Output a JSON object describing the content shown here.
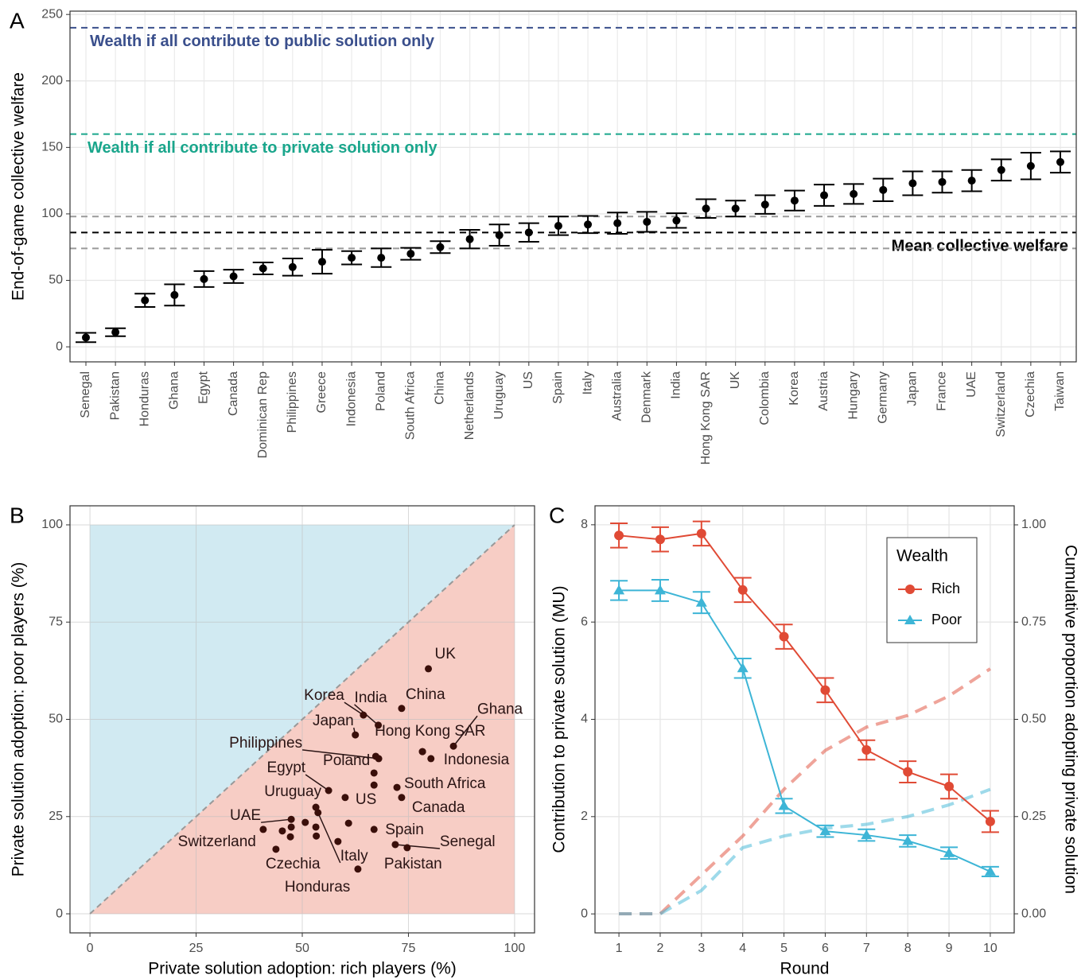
{
  "chart_data": [
    {
      "type": "dot-errorbar",
      "panel_label": "A",
      "ylabel": "End-of-game collective welfare",
      "categories": [
        "Senegal",
        "Pakistan",
        "Honduras",
        "Ghana",
        "Egypt",
        "Canada",
        "Dominican Rep",
        "Philippines",
        "Greece",
        "Indonesia",
        "Poland",
        "South Africa",
        "China",
        "Netherlands",
        "Uruguay",
        "US",
        "Spain",
        "Italy",
        "Australia",
        "Denmark",
        "India",
        "Hong Kong SAR",
        "UK",
        "Colombia",
        "Korea",
        "Austria",
        "Hungary",
        "Germany",
        "Japan",
        "France",
        "UAE",
        "Switzerland",
        "Czechia",
        "Taiwan"
      ],
      "values": [
        7,
        11,
        35,
        39,
        51,
        53,
        59,
        60,
        64,
        67,
        67,
        70,
        75,
        81,
        84,
        86,
        91,
        92,
        93,
        94,
        95,
        104,
        104,
        107,
        110,
        114,
        115,
        118,
        123,
        124,
        125,
        133,
        136,
        139
      ],
      "errors": [
        3.5,
        3,
        5,
        8,
        6,
        5,
        4.5,
        6.5,
        9,
        5,
        7,
        4.5,
        4.5,
        7,
        8,
        7,
        7,
        6.5,
        8,
        7.5,
        5.5,
        7,
        6,
        7,
        7.5,
        8,
        7.5,
        8.5,
        9,
        8,
        8,
        8,
        10,
        8
      ],
      "color": "#000000",
      "ylim": [
        -11.3,
        252.5
      ],
      "yticks": [
        0,
        50,
        100,
        150,
        200,
        250
      ],
      "grid": true,
      "reference_lines": [
        {
          "value": 240,
          "label": "Wealth if all contribute to public solution only",
          "color": "#3a4f8c"
        },
        {
          "value": 160,
          "label": "Wealth if all contribute to private solution only",
          "color": "#1aa68c"
        },
        {
          "value": 98,
          "color": "#9a9a9a"
        },
        {
          "value": 86,
          "label": "Mean collective welfare",
          "color": "#000000"
        },
        {
          "value": 74,
          "color": "#9a9a9a"
        }
      ]
    },
    {
      "type": "scatter",
      "panel_label": "B",
      "xlabel": "Private solution adoption: rich players (%)",
      "ylabel": "Private solution adoption: poor players (%)",
      "x": [
        79.7,
        73.4,
        64.4,
        67.9,
        62.5,
        78.3,
        85.6,
        80.3,
        68.0,
        66.9,
        56.2,
        60.1,
        72.3,
        73.4,
        53.2,
        66.9,
        71.9,
        74.7,
        47.4,
        40.8,
        43.8,
        53.7,
        63.1,
        58.4,
        50.7,
        60.9,
        47.4,
        45.3,
        47.2,
        53.2,
        53.3,
        66.9,
        78.3,
        67.3
      ],
      "y": [
        63.0,
        52.8,
        51.1,
        48.5,
        46.0,
        41.7,
        43.1,
        39.9,
        39.9,
        36.2,
        31.7,
        29.9,
        32.5,
        29.9,
        27.4,
        21.7,
        17.8,
        17.0,
        24.3,
        21.7,
        16.6,
        26.0,
        11.5,
        18.6,
        23.5,
        23.3,
        22.3,
        21.3,
        19.8,
        22.3,
        20.0,
        33.1,
        41.7,
        40.5
      ],
      "labels": [
        "UK",
        "China",
        "Korea",
        "India",
        "Japan",
        "Hong Kong SAR",
        "Ghana",
        "Indonesia",
        "Philippines",
        "Poland",
        "Egypt",
        "US",
        "South Africa",
        "Canada",
        "Uruguay",
        "Spain",
        "Senegal",
        "Pakistan",
        "UAE",
        "Switzerland",
        "Czechia",
        "Italy",
        "Honduras",
        null,
        null,
        null,
        null,
        null,
        null,
        null,
        null,
        null,
        null,
        null
      ],
      "color": "#3a0f0a",
      "upper_region_color": "#d1eaf2",
      "lower_region_color": "#f7cdc5",
      "xlim": [
        -4.7,
        104.7
      ],
      "ylim": [
        -4.9,
        104.9
      ],
      "xticks": [
        0,
        25,
        50,
        75,
        100
      ],
      "yticks": [
        0,
        25,
        50,
        75,
        100
      ],
      "grid": true
    },
    {
      "type": "line",
      "panel_label": "C",
      "xlabel": "Round",
      "ylabel": "Contribution to private solution (MU)",
      "y2label": "Cumulative proportion adopting private solution",
      "legend_title": "Wealth",
      "x": [
        1,
        2,
        3,
        4,
        5,
        6,
        7,
        8,
        9,
        10
      ],
      "series": [
        {
          "name": "Rich",
          "color": "#e04a35",
          "marker": "circle",
          "values": [
            7.78,
            7.7,
            7.82,
            6.66,
            5.7,
            4.6,
            3.37,
            2.92,
            2.62,
            1.9
          ],
          "errors": [
            0.25,
            0.25,
            0.25,
            0.25,
            0.25,
            0.25,
            0.2,
            0.22,
            0.25,
            0.22
          ]
        },
        {
          "name": "Poor",
          "color": "#3db5d6",
          "marker": "triangle",
          "values": [
            6.65,
            6.65,
            6.4,
            5.05,
            2.22,
            1.7,
            1.62,
            1.5,
            1.25,
            0.87
          ],
          "errors": [
            0.2,
            0.22,
            0.22,
            0.2,
            0.15,
            0.12,
            0.12,
            0.12,
            0.12,
            0.1
          ]
        },
        {
          "axis": "y2",
          "color": "#e04a35",
          "values": [
            0,
            0,
            0.1,
            0.2,
            0.32,
            0.42,
            0.48,
            0.51,
            0.56,
            0.63
          ]
        },
        {
          "axis": "y2",
          "color": "#3db5d6",
          "values": [
            0,
            0,
            0.06,
            0.17,
            0.2,
            0.22,
            0.23,
            0.25,
            0.28,
            0.32
          ]
        }
      ],
      "xlim": [
        0.42,
        10.58
      ],
      "ylim": [
        -0.39,
        8.39
      ],
      "y2lim": [
        -0.049,
        1.049
      ],
      "xticks": [
        1,
        2,
        3,
        4,
        5,
        6,
        7,
        8,
        9,
        10
      ],
      "yticks": [
        0,
        2,
        4,
        6,
        8
      ],
      "y2ticks": [
        {
          "value": 0,
          "label": "0.00"
        },
        {
          "value": 0.25,
          "label": "0.25"
        },
        {
          "value": 0.5,
          "label": "0.50"
        },
        {
          "value": 0.75,
          "label": "0.75"
        },
        {
          "value": 1,
          "label": "1.00"
        }
      ],
      "grid": true,
      "legend": "top-right"
    }
  ]
}
